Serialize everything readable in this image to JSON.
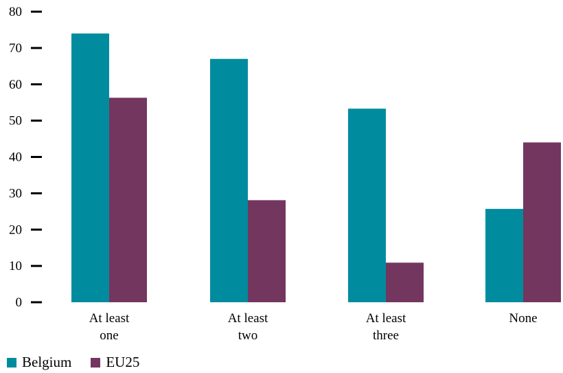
{
  "colors": {
    "belgium": "#008c9e",
    "eu25": "#73365f"
  },
  "chart_data": {
    "type": "bar",
    "title": "",
    "xlabel": "",
    "ylabel": "",
    "ylim": [
      0,
      80
    ],
    "yticks": [
      0,
      10,
      20,
      30,
      40,
      50,
      60,
      70,
      80
    ],
    "grid": false,
    "legend_position": "bottom-left",
    "categories": [
      [
        "At least",
        "one"
      ],
      [
        "At least",
        "two"
      ],
      [
        "At least",
        "three"
      ],
      [
        "None"
      ]
    ],
    "series": [
      {
        "name": "Belgium",
        "color": "#008c9e",
        "values": [
          74,
          67,
          53.3,
          25.7
        ]
      },
      {
        "name": "EU25",
        "color": "#73365f",
        "values": [
          56.3,
          28.1,
          10.9,
          44
        ]
      }
    ]
  }
}
